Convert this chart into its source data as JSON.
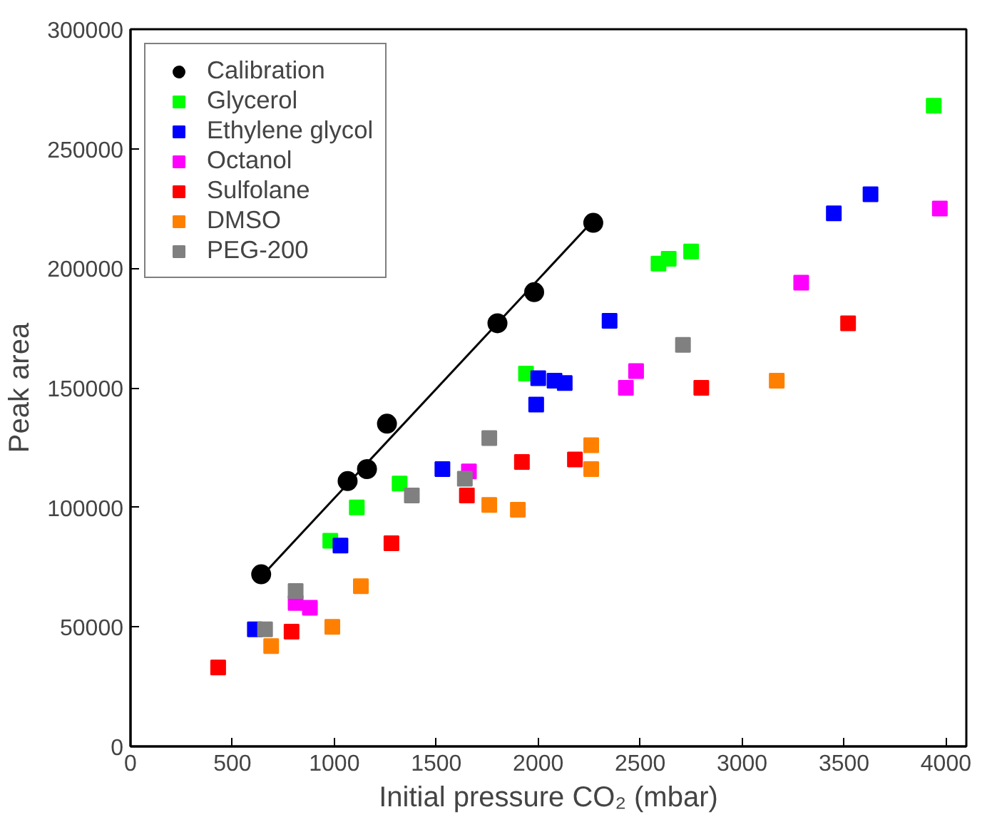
{
  "chart_data": {
    "type": "scatter",
    "xlabel": "Initial pressure CO₂ (mbar)",
    "ylabel": "Peak area",
    "xlim": [
      0,
      4100
    ],
    "ylim": [
      0,
      300000
    ],
    "xticks": [
      0,
      500,
      1000,
      1500,
      2000,
      2500,
      3000,
      3500,
      4000
    ],
    "yticks": [
      0,
      50000,
      100000,
      150000,
      200000,
      250000,
      300000
    ],
    "grid": false,
    "legend": "top left",
    "marker": "square",
    "series": [
      {
        "name": "Calibration",
        "color": "#000000",
        "marker": "circle",
        "x": [
          641,
          1065,
          1160,
          1258,
          1800,
          1980,
          2270
        ],
        "values": [
          72000,
          111000,
          116000,
          135000,
          177000,
          190000,
          219000
        ]
      },
      {
        "type": "line",
        "color": "#000000",
        "marker": "none",
        "x": [
          641,
          2270
        ],
        "values": [
          71000,
          220000
        ]
      },
      {
        "name": "Glycerol",
        "color": "#00ff00",
        "x": [
          980,
          1110,
          1320,
          1940,
          2590,
          2640,
          2750,
          3940
        ],
        "values": [
          86000,
          100000,
          110000,
          156000,
          202000,
          204000,
          207000,
          268000
        ]
      },
      {
        "name": "Ethylene glycol",
        "color": "#0000ff",
        "x": [
          610,
          1030,
          1530,
          1990,
          2000,
          2080,
          2130,
          2350,
          3450,
          3630
        ],
        "values": [
          49000,
          84000,
          116000,
          143000,
          154000,
          153000,
          152000,
          178000,
          223000,
          231000
        ]
      },
      {
        "name": "Octanol",
        "color": "#ff00ff",
        "x": [
          810,
          880,
          1660,
          2430,
          2480,
          3290,
          3970
        ],
        "values": [
          60000,
          58000,
          115000,
          150000,
          157000,
          194000,
          225000
        ]
      },
      {
        "name": "Sulfolane",
        "color": "#ff0000",
        "x": [
          430,
          790,
          1280,
          1650,
          1920,
          2180,
          2800,
          3520
        ],
        "values": [
          33000,
          48000,
          85000,
          105000,
          119000,
          120000,
          150000,
          177000
        ]
      },
      {
        "name": "DMSO",
        "color": "#ff8000",
        "x": [
          690,
          990,
          1130,
          1760,
          1900,
          2260,
          2260,
          3170
        ],
        "values": [
          42000,
          50000,
          67000,
          101000,
          99000,
          126000,
          116000,
          153000
        ]
      },
      {
        "name": "PEG-200",
        "color": "#808080",
        "x": [
          660,
          810,
          1380,
          1640,
          1760,
          2710
        ],
        "values": [
          49000,
          65000,
          105000,
          112000,
          129000,
          168000
        ]
      }
    ]
  }
}
